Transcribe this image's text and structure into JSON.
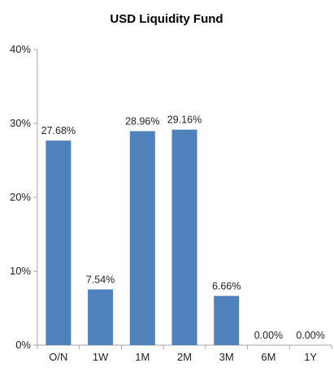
{
  "chart_data": {
    "type": "bar",
    "title": "USD Liquidity Fund",
    "categories": [
      "O/N",
      "1W",
      "1M",
      "2M",
      "3M",
      "6M",
      "1Y"
    ],
    "values": [
      27.68,
      7.54,
      28.96,
      29.16,
      6.66,
      0.0,
      0.0
    ],
    "value_labels": [
      "27.68%",
      "7.54%",
      "28.96%",
      "29.16%",
      "6.66%",
      "0.00%",
      "0.00%"
    ],
    "y_ticks": [
      0,
      10,
      20,
      30,
      40
    ],
    "y_tick_labels": [
      "0%",
      "10%",
      "20%",
      "30%",
      "40%"
    ],
    "ylim": [
      0,
      40
    ],
    "xlabel": "",
    "ylabel": "",
    "grid": false,
    "legend": "none",
    "bar_color": "#4F81BD",
    "axis_color": "#A6A6A6"
  }
}
